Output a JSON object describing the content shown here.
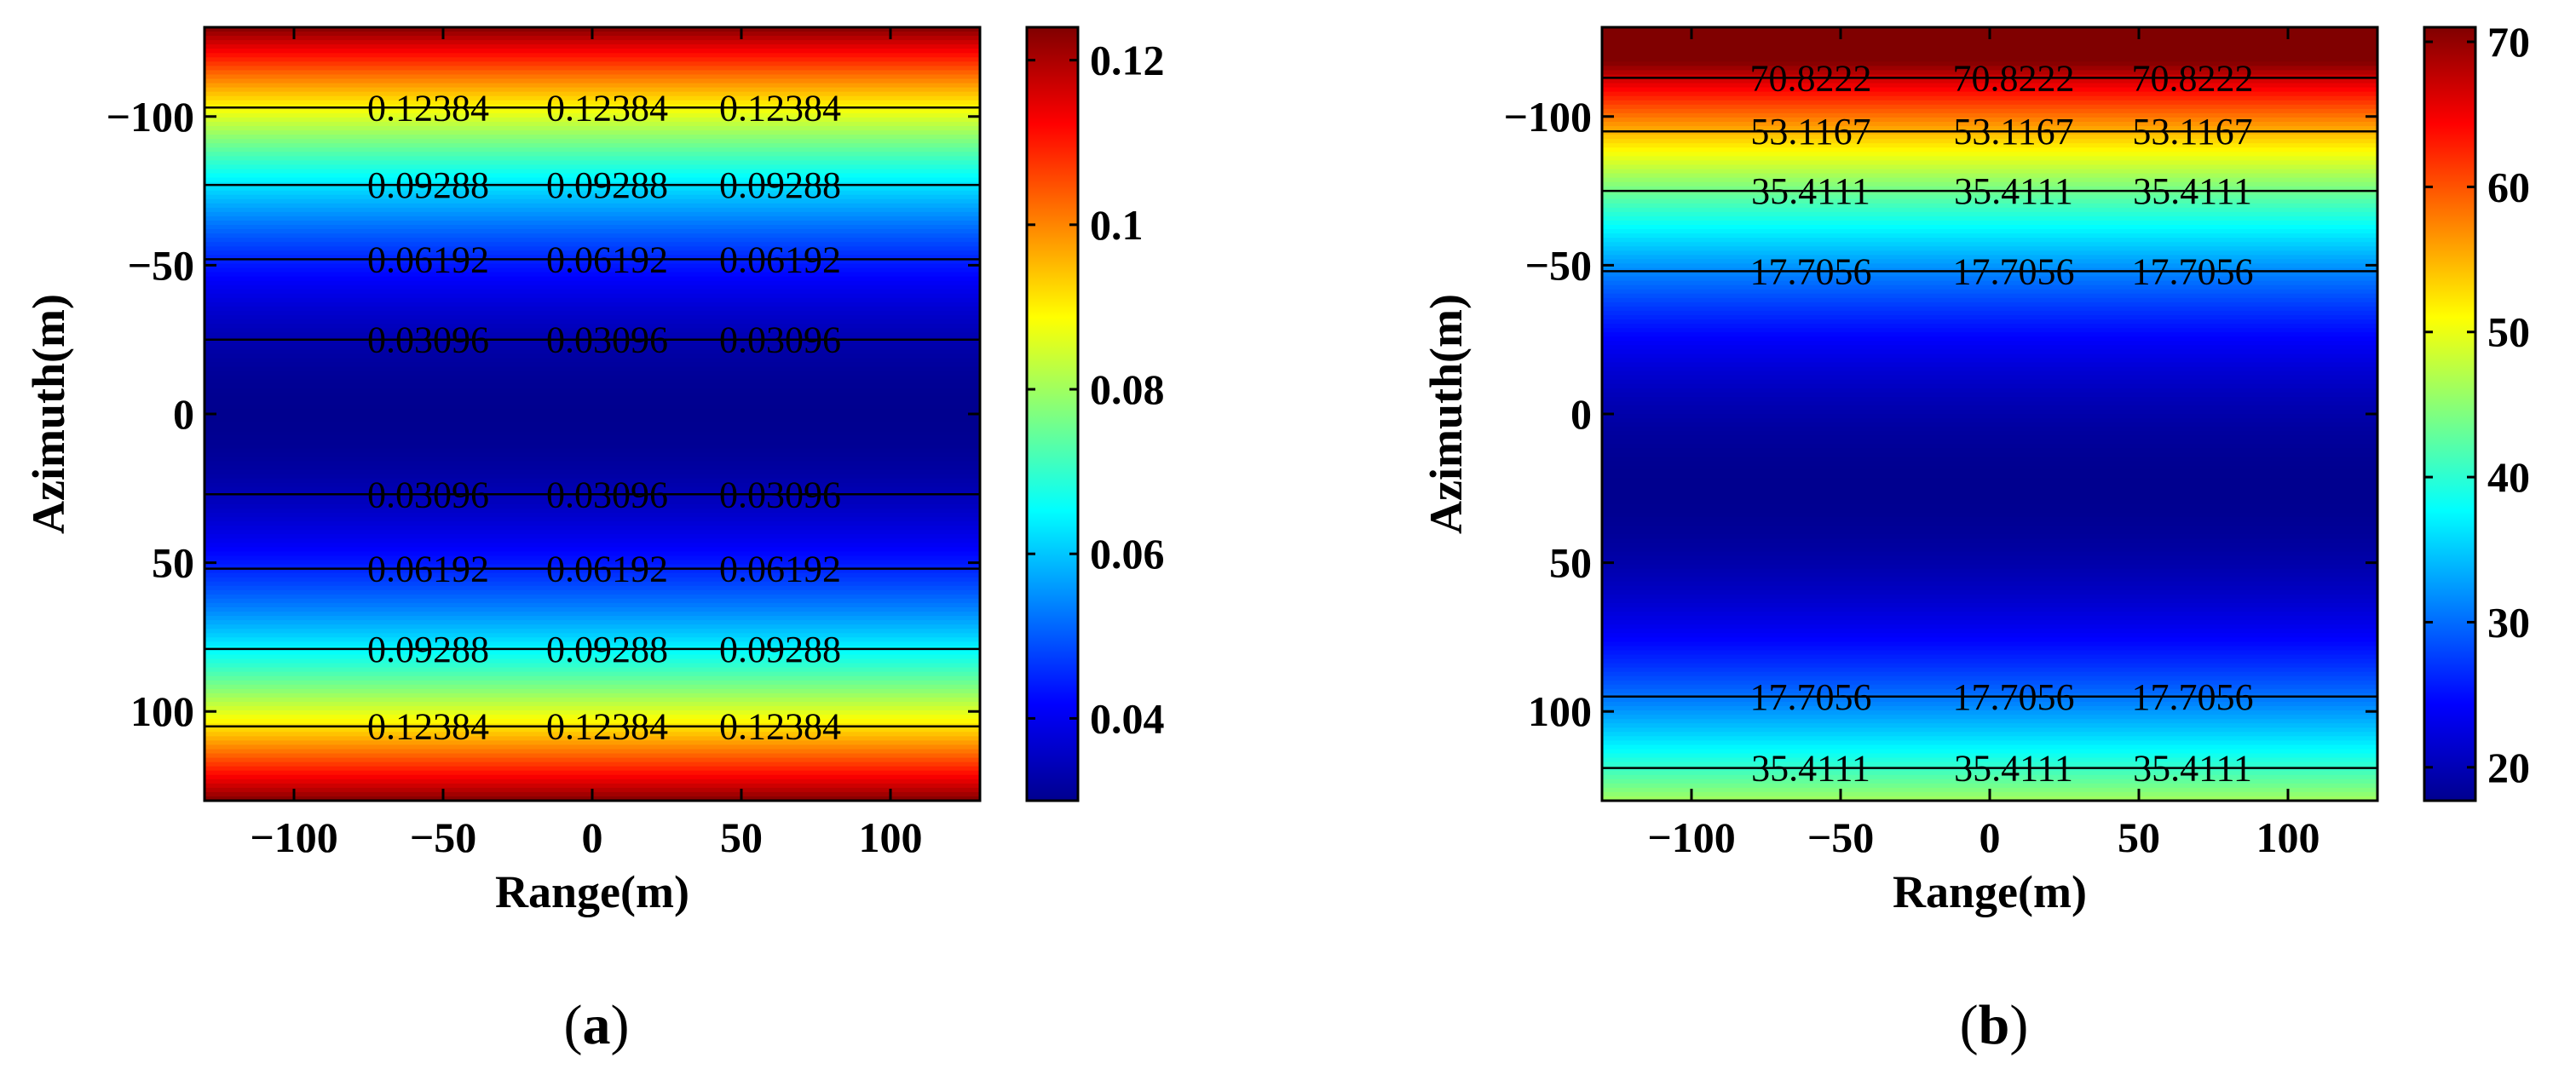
{
  "chart_data": [
    {
      "type": "heatmap",
      "panel_caption_open": "(",
      "panel_caption_letter": "a",
      "panel_caption_close": ")",
      "xlabel": "Range(m)",
      "ylabel": "Azimuth(m)",
      "xlim": [
        -130,
        130
      ],
      "ylim": [
        -130,
        130
      ],
      "y_inverted": true,
      "x_ticks": [
        -100,
        -50,
        0,
        50,
        100
      ],
      "y_ticks": [
        -100,
        -50,
        0,
        50,
        100
      ],
      "y_tick_labels": [
        "−100",
        "−50",
        "0",
        "50",
        "100"
      ],
      "x_tick_labels": [
        "−100",
        "−50",
        "0",
        "50",
        "100"
      ],
      "colorbar": {
        "min": 0.03,
        "max": 0.124,
        "ticks": [
          0.04,
          0.06,
          0.08,
          0.1,
          0.12
        ],
        "tick_labels": [
          "0.04",
          "0.06",
          "0.08",
          "0.1",
          "0.12"
        ]
      },
      "field": {
        "form": "quadratic_in_azimuth",
        "value_at_center": 0.03,
        "value_at_edge": 0.124
      },
      "contours": [
        {
          "level_label": "0.12384",
          "y": -103
        },
        {
          "level_label": "0.09288",
          "y": -77
        },
        {
          "level_label": "0.06192",
          "y": -52
        },
        {
          "level_label": "0.03096",
          "y": -25
        },
        {
          "level_label": "0.03096",
          "y": 27
        },
        {
          "level_label": "0.06192",
          "y": 52
        },
        {
          "level_label": "0.09288",
          "y": 79
        },
        {
          "level_label": "0.12384",
          "y": 105
        }
      ],
      "contour_label_x": [
        -55,
        5,
        63
      ]
    },
    {
      "type": "heatmap",
      "panel_caption_open": "(",
      "panel_caption_letter": "b",
      "panel_caption_close": ")",
      "xlabel": "Range(m)",
      "ylabel": "Azimuth(m)",
      "xlim": [
        -130,
        130
      ],
      "ylim": [
        -130,
        130
      ],
      "y_inverted": true,
      "x_ticks": [
        -100,
        -50,
        0,
        50,
        100
      ],
      "y_ticks": [
        -100,
        -50,
        0,
        50,
        100
      ],
      "y_tick_labels": [
        "−100",
        "−50",
        "0",
        "50",
        "100"
      ],
      "x_tick_labels": [
        "−100",
        "−50",
        "0",
        "50",
        "100"
      ],
      "colorbar": {
        "min": 17.7,
        "max": 71,
        "ticks": [
          20,
          30,
          40,
          50,
          60,
          70
        ],
        "tick_labels": [
          "20",
          "30",
          "40",
          "50",
          "60",
          "70"
        ]
      },
      "field": {
        "form": "quadratic_in_azimuth_offset",
        "minimum_at_azimuth": 25,
        "value_at_minimum": 17.7,
        "value_at_top_edge": 80
      },
      "contours": [
        {
          "level_label": "70.8222",
          "y": -113
        },
        {
          "level_label": "53.1167",
          "y": -95
        },
        {
          "level_label": "35.4111",
          "y": -75
        },
        {
          "level_label": "17.7056",
          "y": -48
        },
        {
          "level_label": "17.7056",
          "y": 95
        },
        {
          "level_label": "35.4111",
          "y": 119
        }
      ],
      "contour_label_x": [
        -60,
        8,
        68
      ]
    }
  ],
  "colors": {
    "colormap": [
      "#00008f",
      "#0000ff",
      "#00ffff",
      "#ffff00",
      "#ff0000",
      "#800000"
    ],
    "contour_line": "#000000",
    "axis": "#000000"
  }
}
